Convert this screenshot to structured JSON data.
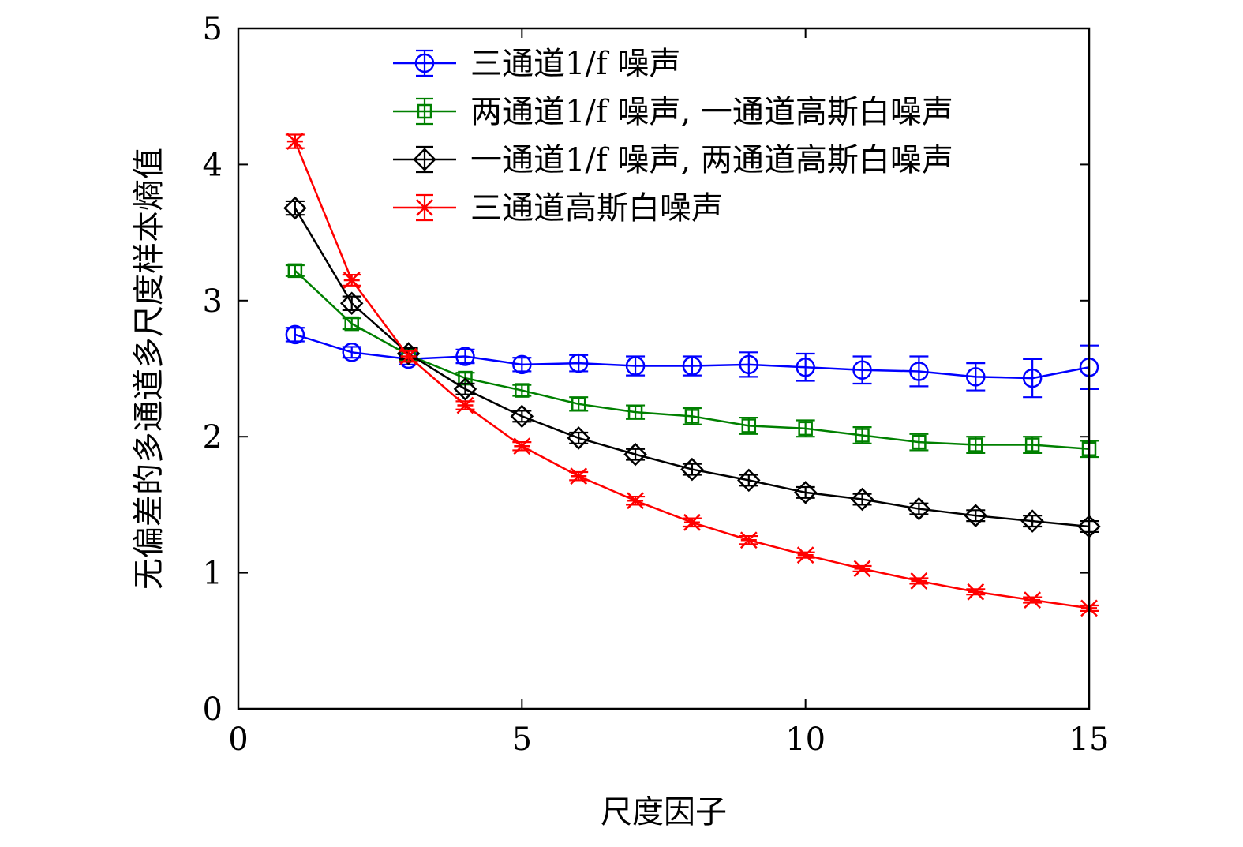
{
  "chart_data": {
    "type": "line",
    "title": "",
    "xlabel": "尺度因子",
    "ylabel": "无偏差的多通道多尺度样本熵值",
    "xlim": [
      0,
      15
    ],
    "ylim": [
      0,
      5
    ],
    "xticks": [
      0,
      5,
      10,
      15
    ],
    "yticks": [
      0,
      1,
      2,
      3,
      4,
      5
    ],
    "grid": false,
    "legend_position": "top-center",
    "x": [
      1,
      2,
      3,
      4,
      5,
      6,
      7,
      8,
      9,
      10,
      11,
      12,
      13,
      14,
      15
    ],
    "series": [
      {
        "name": "三通道1/f 噪声",
        "color": "#0000ff",
        "marker": "circle",
        "values": [
          2.75,
          2.62,
          2.57,
          2.59,
          2.53,
          2.54,
          2.52,
          2.52,
          2.53,
          2.51,
          2.49,
          2.48,
          2.44,
          2.43,
          2.51
        ],
        "errors": [
          0.05,
          0.04,
          0.04,
          0.05,
          0.05,
          0.06,
          0.07,
          0.07,
          0.09,
          0.1,
          0.1,
          0.11,
          0.1,
          0.14,
          0.16
        ]
      },
      {
        "name": "两通道1/f 噪声, 一通道高斯白噪声",
        "color": "#008000",
        "marker": "square",
        "values": [
          3.22,
          2.83,
          2.6,
          2.43,
          2.34,
          2.24,
          2.18,
          2.15,
          2.08,
          2.06,
          2.01,
          1.96,
          1.94,
          1.94,
          1.91
        ],
        "errors": [
          0.04,
          0.04,
          0.04,
          0.04,
          0.04,
          0.05,
          0.05,
          0.06,
          0.06,
          0.06,
          0.06,
          0.06,
          0.06,
          0.06,
          0.06
        ]
      },
      {
        "name": "一通道1/f 噪声, 两通道高斯白噪声",
        "color": "#000000",
        "marker": "diamond",
        "values": [
          3.68,
          2.98,
          2.61,
          2.35,
          2.15,
          1.99,
          1.87,
          1.76,
          1.68,
          1.59,
          1.54,
          1.47,
          1.42,
          1.38,
          1.34
        ],
        "errors": [
          0.05,
          0.05,
          0.04,
          0.04,
          0.04,
          0.04,
          0.04,
          0.04,
          0.04,
          0.04,
          0.04,
          0.04,
          0.04,
          0.04,
          0.04
        ]
      },
      {
        "name": "三通道高斯白噪声",
        "color": "#ff0000",
        "marker": "asterisk",
        "values": [
          4.17,
          3.15,
          2.59,
          2.23,
          1.93,
          1.71,
          1.53,
          1.37,
          1.24,
          1.13,
          1.03,
          0.94,
          0.86,
          0.8,
          0.74
        ],
        "errors": [
          0.05,
          0.04,
          0.04,
          0.03,
          0.03,
          0.03,
          0.03,
          0.03,
          0.03,
          0.02,
          0.02,
          0.02,
          0.02,
          0.02,
          0.02
        ]
      }
    ]
  }
}
